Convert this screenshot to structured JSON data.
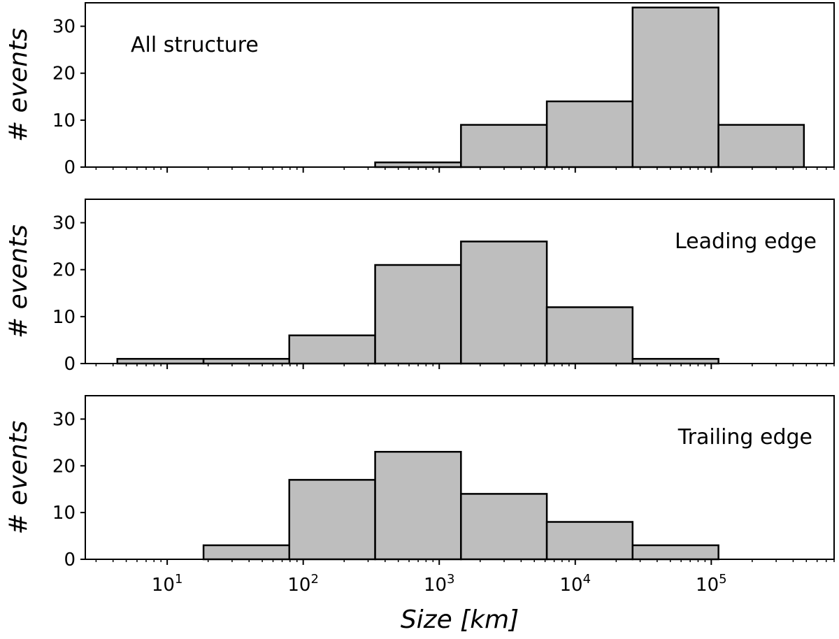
{
  "chart_data": [
    {
      "type": "bar",
      "annotation": "All structure",
      "ylabel": "# events",
      "xlabel": "",
      "x_scale": "log",
      "xlim": [
        2.5,
        800000
      ],
      "ylim": [
        0,
        35
      ],
      "yticks": [
        "0",
        "10",
        "20",
        "30"
      ],
      "bin_edges": [
        4.3,
        18.5,
        79,
        338,
        1445,
        6180,
        26400,
        113000,
        480000
      ],
      "values": [
        0,
        0,
        0,
        1,
        9,
        14,
        34,
        9
      ],
      "bar_color": "#bebebe",
      "edge_color": "#000000"
    },
    {
      "type": "bar",
      "annotation": "Leading edge",
      "ylabel": "# events",
      "xlabel": "",
      "x_scale": "log",
      "xlim": [
        2.5,
        800000
      ],
      "ylim": [
        0,
        35
      ],
      "yticks": [
        "0",
        "10",
        "20",
        "30"
      ],
      "bin_edges": [
        4.3,
        18.5,
        79,
        338,
        1445,
        6180,
        26400,
        113000,
        480000
      ],
      "values": [
        1,
        1,
        6,
        21,
        26,
        12,
        1,
        0
      ],
      "bar_color": "#bebebe",
      "edge_color": "#000000"
    },
    {
      "type": "bar",
      "annotation": "Trailing edge",
      "ylabel": "# events",
      "xlabel": "Size [km]",
      "x_scale": "log",
      "xlim": [
        2.5,
        800000
      ],
      "ylim": [
        0,
        35
      ],
      "yticks": [
        "0",
        "10",
        "20",
        "30"
      ],
      "xtick_base": "10",
      "xtick_exponents": [
        "1",
        "2",
        "3",
        "4",
        "5"
      ],
      "bin_edges": [
        4.3,
        18.5,
        79,
        338,
        1445,
        6180,
        26400,
        113000,
        480000
      ],
      "values": [
        0,
        3,
        17,
        23,
        14,
        8,
        3,
        0
      ],
      "bar_color": "#bebebe",
      "edge_color": "#000000"
    }
  ]
}
